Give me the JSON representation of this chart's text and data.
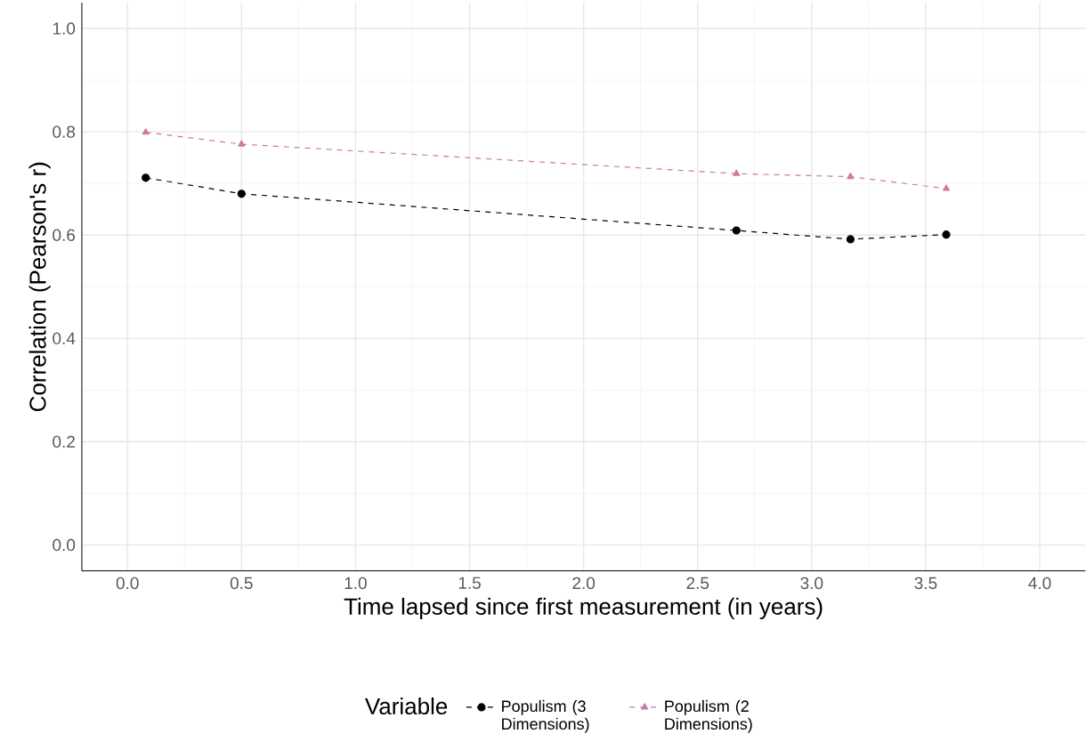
{
  "chart_data": {
    "type": "line",
    "xlabel": "Time lapsed since first measurement (in years)",
    "ylabel": "Correlation (Pearson's r)",
    "x": [
      0.08,
      0.5,
      2.67,
      3.17,
      3.59
    ],
    "series": [
      {
        "name": "Populism (3 Dimensions)",
        "color": "#000000",
        "marker": "circle",
        "values": [
          0.711,
          0.68,
          0.609,
          0.592,
          0.601
        ]
      },
      {
        "name": "Populism (2 Dimensions)",
        "color": "#cc79a7",
        "marker": "triangle",
        "values": [
          0.799,
          0.776,
          0.719,
          0.713,
          0.69
        ]
      }
    ],
    "xlim": [
      -0.2,
      4.2
    ],
    "ylim": [
      -0.05,
      1.05
    ],
    "xticks": [
      {
        "value": 0,
        "label": "0.0"
      },
      0.5,
      {
        "value": 1,
        "label": "1.0"
      },
      1.5,
      {
        "value": 2,
        "label": "2.0"
      },
      2.5,
      {
        "value": 3,
        "label": "3.0"
      },
      3.5,
      {
        "value": 4,
        "label": "4.0"
      }
    ],
    "yticks": [
      {
        "value": 0,
        "label": "0.0"
      },
      0.2,
      0.4,
      0.6,
      0.8,
      {
        "value": 1,
        "label": "1.0"
      }
    ],
    "grid": true,
    "legend": "bottom",
    "legend_title": "Variable",
    "line_style": "dashed"
  }
}
